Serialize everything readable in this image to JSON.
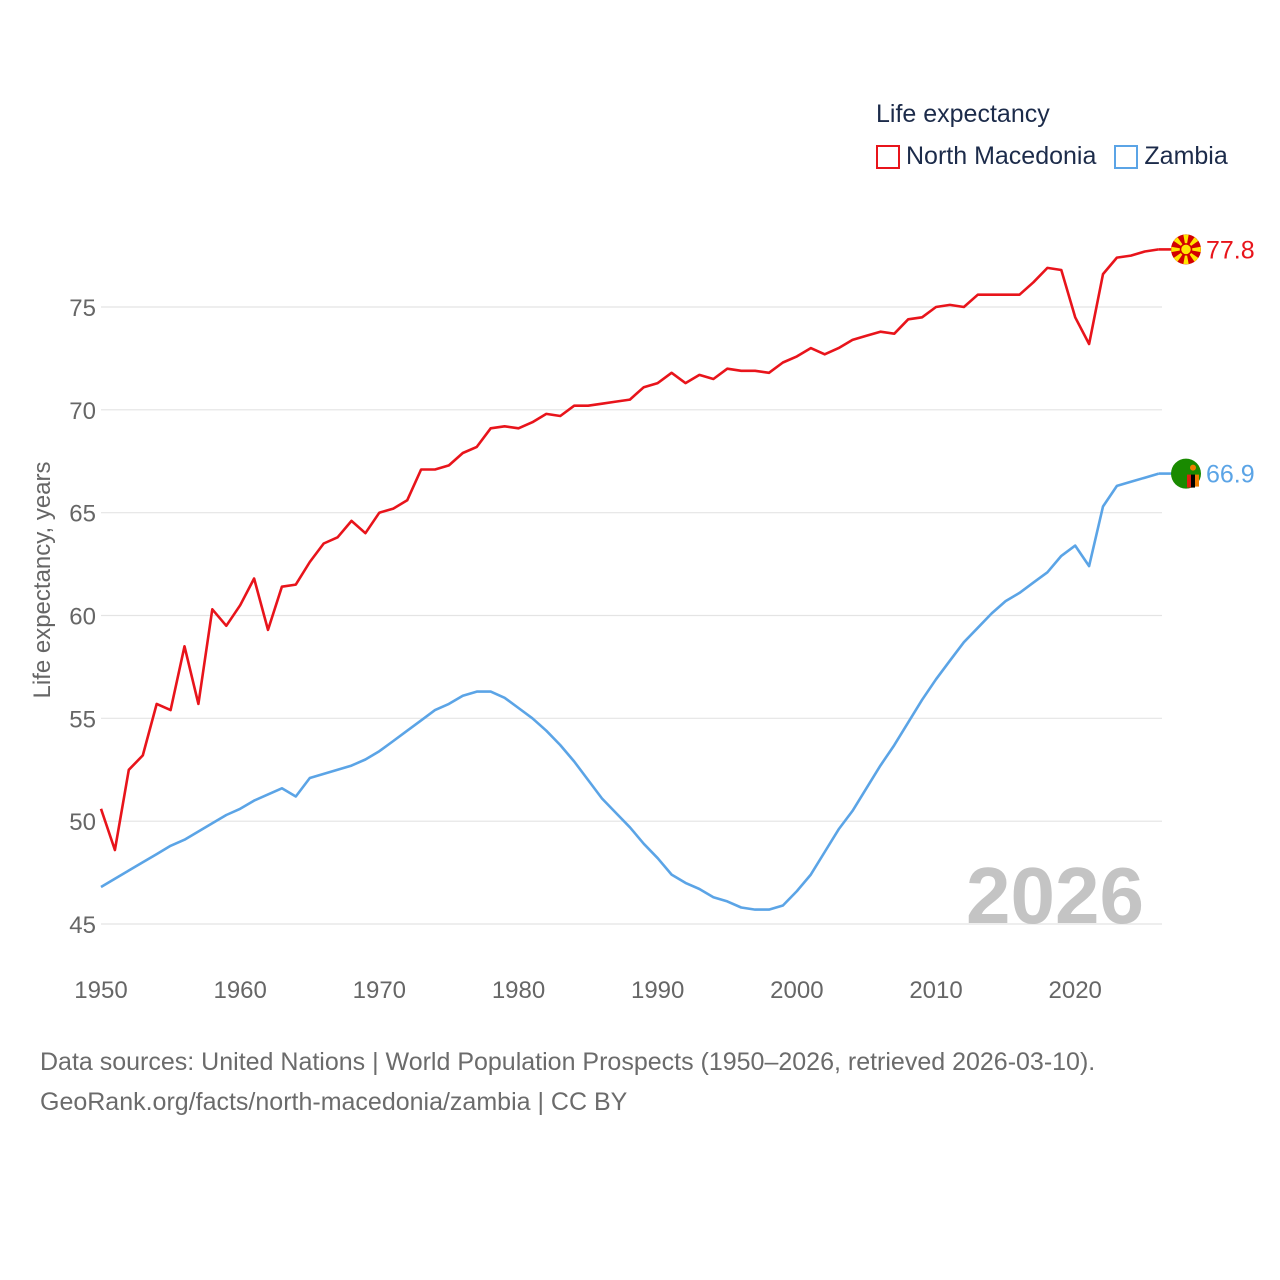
{
  "legend": {
    "title": "Life expectancy",
    "items": [
      {
        "label": "North Macedonia",
        "color": "#e8141b"
      },
      {
        "label": "Zambia",
        "color": "#5ba4e6"
      }
    ]
  },
  "year_badge": "2026",
  "source": {
    "line1": "Data sources: United Nations | World Population Prospects (1950–2026, retrieved 2026-03-10).",
    "line2": "GeoRank.org/facts/north-macedonia/zambia | CC BY"
  },
  "chart_data": {
    "type": "line",
    "title": "Life expectancy",
    "xlabel": "",
    "ylabel": "Life expectancy, years",
    "xlim": [
      1950,
      2026
    ],
    "ylim": [
      45,
      78.5
    ],
    "x_ticks": [
      1950,
      1960,
      1970,
      1980,
      1990,
      2000,
      2010,
      2020
    ],
    "y_ticks": [
      45,
      50,
      55,
      60,
      65,
      70,
      75
    ],
    "grid": true,
    "legend_position": "top-right",
    "series": [
      {
        "name": "North Macedonia",
        "color": "#e8141b",
        "end_label": "77.8",
        "end_icon": "north-macedonia-flag-icon",
        "x": [
          1950,
          1951,
          1952,
          1953,
          1954,
          1955,
          1956,
          1957,
          1958,
          1959,
          1960,
          1961,
          1962,
          1963,
          1964,
          1965,
          1966,
          1967,
          1968,
          1969,
          1970,
          1971,
          1972,
          1973,
          1974,
          1975,
          1976,
          1977,
          1978,
          1979,
          1980,
          1981,
          1982,
          1983,
          1984,
          1985,
          1986,
          1987,
          1988,
          1989,
          1990,
          1991,
          1992,
          1993,
          1994,
          1995,
          1996,
          1997,
          1998,
          1999,
          2000,
          2001,
          2002,
          2003,
          2004,
          2005,
          2006,
          2007,
          2008,
          2009,
          2010,
          2011,
          2012,
          2013,
          2014,
          2015,
          2016,
          2017,
          2018,
          2019,
          2020,
          2021,
          2022,
          2023,
          2024,
          2025,
          2026
        ],
        "values": [
          50.6,
          48.6,
          52.5,
          53.2,
          55.7,
          55.4,
          58.5,
          55.7,
          60.3,
          59.5,
          60.5,
          61.8,
          59.3,
          61.4,
          61.5,
          62.6,
          63.5,
          63.8,
          64.6,
          64.0,
          65.0,
          65.2,
          65.6,
          67.1,
          67.1,
          67.3,
          67.9,
          68.2,
          69.1,
          69.2,
          69.1,
          69.4,
          69.8,
          69.7,
          70.2,
          70.2,
          70.3,
          70.4,
          70.5,
          71.1,
          71.3,
          71.8,
          71.3,
          71.7,
          71.5,
          72.0,
          71.9,
          71.9,
          71.8,
          72.3,
          72.6,
          73.0,
          72.7,
          73.0,
          73.4,
          73.6,
          73.8,
          73.7,
          74.4,
          74.5,
          75.0,
          75.1,
          75.0,
          75.6,
          75.6,
          75.6,
          75.6,
          76.2,
          76.9,
          76.8,
          74.5,
          73.2,
          76.6,
          77.4,
          77.5,
          77.7,
          77.8
        ]
      },
      {
        "name": "Zambia",
        "color": "#5ba4e6",
        "end_label": "66.9",
        "end_icon": "zambia-flag-icon",
        "x": [
          1950,
          1951,
          1952,
          1953,
          1954,
          1955,
          1956,
          1957,
          1958,
          1959,
          1960,
          1961,
          1962,
          1963,
          1964,
          1965,
          1966,
          1967,
          1968,
          1969,
          1970,
          1971,
          1972,
          1973,
          1974,
          1975,
          1976,
          1977,
          1978,
          1979,
          1980,
          1981,
          1982,
          1983,
          1984,
          1985,
          1986,
          1987,
          1988,
          1989,
          1990,
          1991,
          1992,
          1993,
          1994,
          1995,
          1996,
          1997,
          1998,
          1999,
          2000,
          2001,
          2002,
          2003,
          2004,
          2005,
          2006,
          2007,
          2008,
          2009,
          2010,
          2011,
          2012,
          2013,
          2014,
          2015,
          2016,
          2017,
          2018,
          2019,
          2020,
          2021,
          2022,
          2023,
          2024,
          2025,
          2026
        ],
        "values": [
          46.8,
          47.2,
          47.6,
          48.0,
          48.4,
          48.8,
          49.1,
          49.5,
          49.9,
          50.3,
          50.6,
          51.0,
          51.3,
          51.6,
          51.2,
          52.1,
          52.3,
          52.5,
          52.7,
          53.0,
          53.4,
          53.9,
          54.4,
          54.9,
          55.4,
          55.7,
          56.1,
          56.3,
          56.3,
          56.0,
          55.5,
          55.0,
          54.4,
          53.7,
          52.9,
          52.0,
          51.1,
          50.4,
          49.7,
          48.9,
          48.2,
          47.4,
          47.0,
          46.7,
          46.3,
          46.1,
          45.8,
          45.7,
          45.7,
          45.9,
          46.6,
          47.4,
          48.5,
          49.6,
          50.5,
          51.6,
          52.7,
          53.7,
          54.8,
          55.9,
          56.9,
          57.8,
          58.7,
          59.4,
          60.1,
          60.7,
          61.1,
          61.6,
          62.1,
          62.9,
          63.4,
          62.4,
          65.3,
          66.3,
          66.5,
          66.7,
          66.9
        ]
      }
    ]
  }
}
